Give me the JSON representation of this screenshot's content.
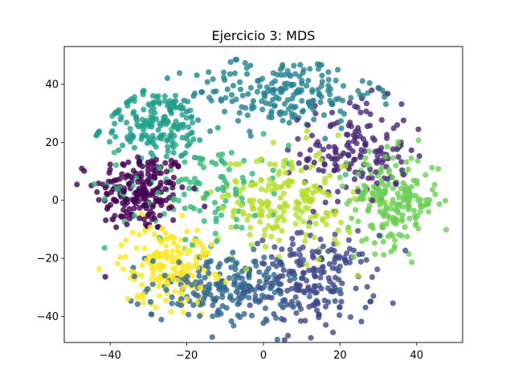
{
  "chart_data": {
    "type": "scatter",
    "title": "Ejercicio 3: MDS",
    "xlabel": "",
    "ylabel": "",
    "xlim": [
      -52,
      52
    ],
    "ylim": [
      -49,
      53
    ],
    "xticks": [
      -40,
      -20,
      0,
      20,
      40
    ],
    "yticks": [
      -40,
      -20,
      0,
      20,
      40
    ],
    "xtick_labels": [
      "−40",
      "−20",
      "0",
      "20",
      "40"
    ],
    "ytick_labels": [
      "−40",
      "−20",
      "0",
      "20",
      "40"
    ],
    "grid": false,
    "legend": "none",
    "colormap": "viridis",
    "marker_alpha": 0.8,
    "clusters": [
      {
        "label": 0,
        "color": "#440154",
        "center": [
          -32,
          3
        ],
        "spread": [
          6,
          7
        ],
        "count": 200
      },
      {
        "label": 1,
        "color": "#482878",
        "center": [
          24,
          17
        ],
        "spread": [
          7,
          9
        ],
        "count": 160
      },
      {
        "label": 2,
        "color": "#3e4989",
        "center": [
          13,
          -28
        ],
        "spread": [
          8,
          8
        ],
        "count": 200
      },
      {
        "label": 3,
        "color": "#31688e",
        "center": [
          -10,
          -30
        ],
        "spread": [
          10,
          6
        ],
        "count": 200
      },
      {
        "label": 4,
        "color": "#26828e",
        "center": [
          5,
          37
        ],
        "spread": [
          12,
          6
        ],
        "count": 200
      },
      {
        "label": 5,
        "color": "#1f9e89",
        "center": [
          -28,
          26
        ],
        "spread": [
          7,
          6
        ],
        "count": 170
      },
      {
        "label": 6,
        "color": "#35b779",
        "center": [
          -17,
          5
        ],
        "spread": [
          12,
          9
        ],
        "count": 120
      },
      {
        "label": 7,
        "color": "#6ece58",
        "center": [
          34,
          0
        ],
        "spread": [
          6,
          8
        ],
        "count": 200
      },
      {
        "label": 8,
        "color": "#b5de2b",
        "center": [
          6,
          0
        ],
        "spread": [
          9,
          9
        ],
        "count": 200
      },
      {
        "label": 9,
        "color": "#fde725",
        "center": [
          -25,
          -22
        ],
        "spread": [
          6,
          7
        ],
        "count": 180
      }
    ]
  }
}
